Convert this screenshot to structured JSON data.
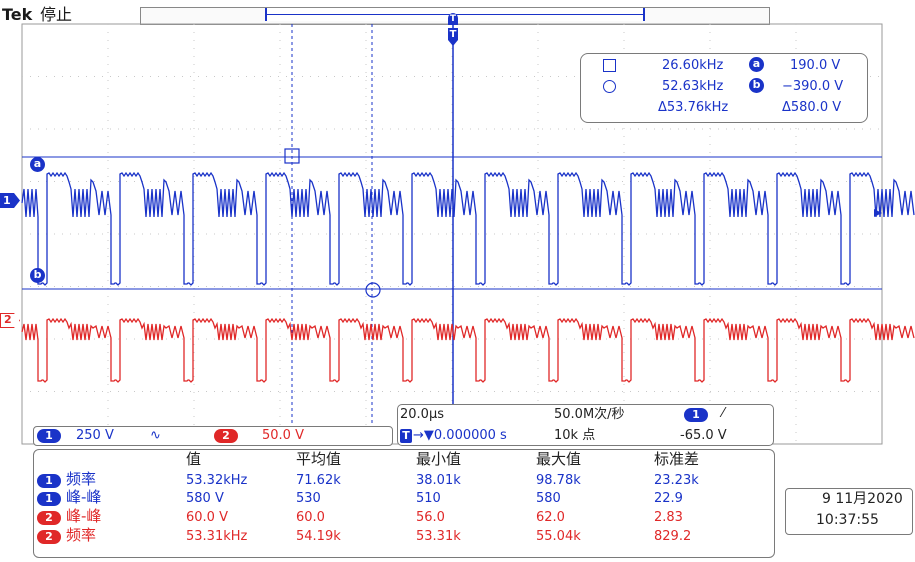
{
  "header": {
    "brand": "Tek",
    "run_state": "停止"
  },
  "trigger_marker": "T",
  "cursor_readout": {
    "line1": {
      "freq": "26.60kHz",
      "cursor": "a",
      "volt": "190.0 V"
    },
    "line2": {
      "freq": "52.63kHz",
      "cursor": "b",
      "volt": "−390.0 V"
    },
    "line3": {
      "dfreq": "Δ53.76kHz",
      "dvolt": "Δ580.0 V"
    }
  },
  "channels": {
    "ch1": {
      "number": "1",
      "scale": "250 V",
      "coupling_symbol": "∿",
      "color": "#1a33c8"
    },
    "ch2": {
      "number": "2",
      "scale": "50.0 V",
      "color": "#e02828"
    }
  },
  "timebase": {
    "horizontal": "20.0µs",
    "sample_rate": "50.0M次/秒",
    "trigger_pos": "→▼0.000000 s",
    "record_length": "10k 点",
    "trigger_source": "1",
    "trigger_slope": "⁄",
    "trigger_level": "-65.0 V"
  },
  "measurements": {
    "headers": [
      "值",
      "平均值",
      "最小值",
      "最大值",
      "标准差"
    ],
    "rows": [
      {
        "ch": "1",
        "name": "频率",
        "color": "blue",
        "values": [
          "53.32kHz",
          "71.62k",
          "38.01k",
          "98.78k",
          "23.23k"
        ]
      },
      {
        "ch": "1",
        "name": "峰-峰",
        "color": "blue",
        "values": [
          "580 V",
          "530",
          "510",
          "580",
          "22.9"
        ]
      },
      {
        "ch": "2",
        "name": "峰-峰",
        "color": "red",
        "values": [
          "60.0 V",
          "60.0",
          "56.0",
          "62.0",
          "2.83"
        ]
      },
      {
        "ch": "2",
        "name": "频率",
        "color": "red",
        "values": [
          "53.31kHz",
          "54.19k",
          "53.31k",
          "55.04k",
          "829.2"
        ]
      }
    ]
  },
  "datetime": {
    "date": "9 11月2020",
    "time": "10:37:55"
  }
}
